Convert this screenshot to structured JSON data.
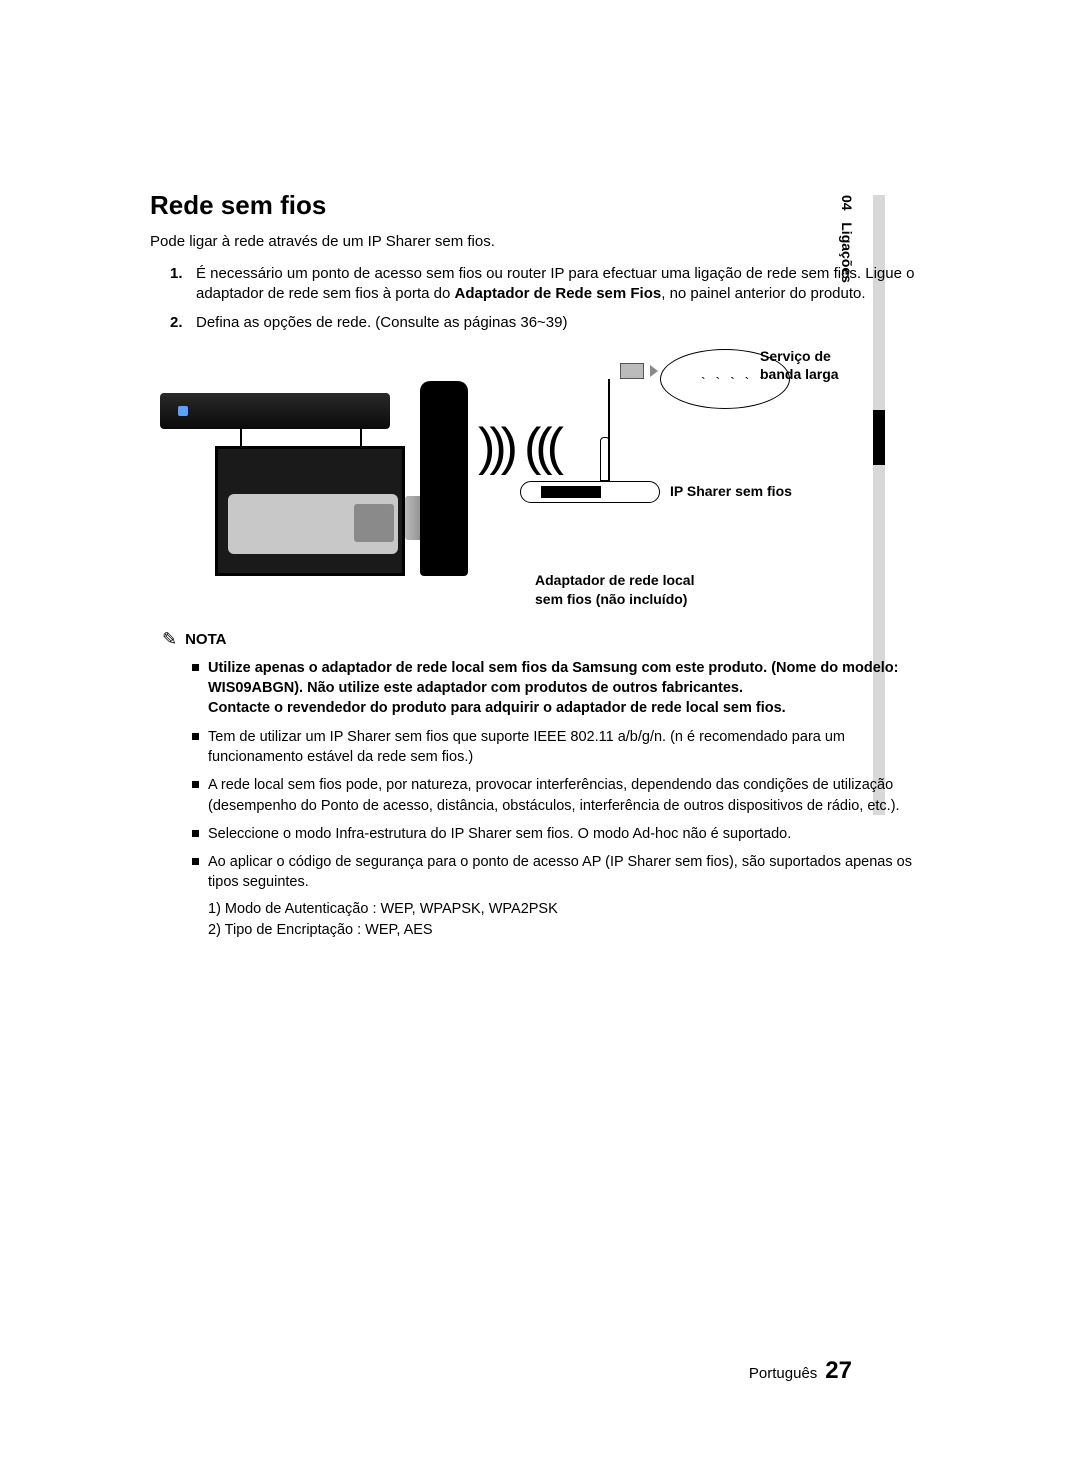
{
  "section": {
    "number": "04",
    "name": "Ligações"
  },
  "title": "Rede sem fios",
  "intro": "Pode ligar à rede através de um IP Sharer sem fios.",
  "steps": [
    {
      "num": "1.",
      "text_before": "É necessário um ponto de acesso sem fios ou router IP para efectuar uma ligação de rede sem fios. Ligue o adaptador de rede sem fios à porta do ",
      "bold": "Adaptador de Rede sem Fios",
      "text_after": ", no painel anterior do produto."
    },
    {
      "num": "2.",
      "text_before": "Defina as opções de rede. (Consulte as páginas 36~39)",
      "bold": "",
      "text_after": ""
    }
  ],
  "diagram": {
    "broadband_label": "Serviço de\nbanda larga",
    "ip_sharer_label": "IP Sharer sem fios",
    "adapter_label": "Adaptador de rede local\nsem fios (não incluído)",
    "wave_out": ")))",
    "wave_in": ")))"
  },
  "nota_heading": "NOTA",
  "notes": [
    {
      "bold": true,
      "text": "Utilize apenas o adaptador de rede local sem fios da Samsung com este produto. (Nome do modelo: WIS09ABGN). Não utilize este adaptador com produtos de outros fabricantes.\nContacte o revendedor do produto para adquirir o adaptador de rede local sem fios."
    },
    {
      "bold": false,
      "text": "Tem de utilizar um IP Sharer sem fios que suporte IEEE 802.11 a/b/g/n. (n é recomendado para um funcionamento estável da rede sem fios.)"
    },
    {
      "bold": false,
      "text": "A rede local sem fios pode, por natureza, provocar interferências, dependendo das condições de utilização (desempenho do Ponto de acesso, distância, obstáculos, interferência de outros dispositivos de rádio, etc.)."
    },
    {
      "bold": false,
      "text": "Seleccione o modo Infra-estrutura do IP Sharer sem fios. O modo Ad-hoc não é suportado."
    },
    {
      "bold": false,
      "text": "Ao aplicar o código de segurança para o ponto de acesso AP (IP Sharer sem fios), são suportados apenas os tipos seguintes.",
      "sublist": [
        "1) Modo de Autenticação : WEP, WPAPSK, WPA2PSK",
        "2) Tipo de Encriptação : WEP, AES"
      ]
    }
  ],
  "footer": {
    "language": "Português",
    "page": "27"
  }
}
